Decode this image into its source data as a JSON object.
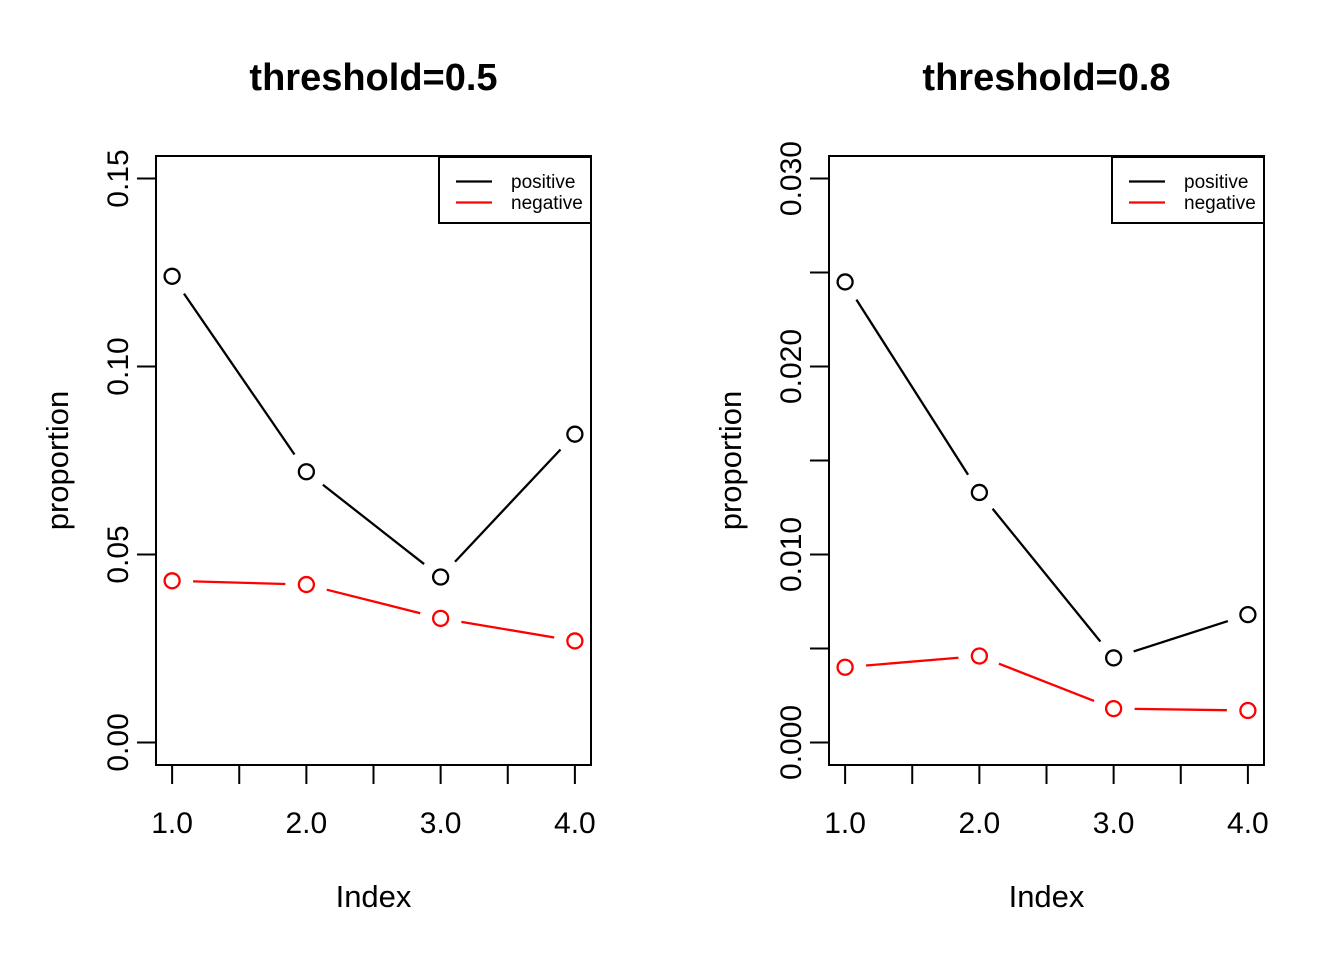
{
  "figure": {
    "background": "#ffffff",
    "description": "Two-panel line chart of positive/negative proportions by index at two thresholds"
  },
  "chart_data": [
    {
      "type": "line",
      "title": "threshold=0.5",
      "xlabel": "Index",
      "ylabel": "proportion",
      "x": [
        1,
        2,
        3,
        4
      ],
      "series": [
        {
          "name": "positive",
          "color": "#000000",
          "values": [
            0.124,
            0.072,
            0.044,
            0.082
          ]
        },
        {
          "name": "negative",
          "color": "#ff0000",
          "values": [
            0.043,
            0.042,
            0.033,
            0.027
          ]
        }
      ],
      "xlim": [
        1,
        4
      ],
      "ylim": [
        0,
        0.15
      ],
      "x_ticks": [
        1,
        1.5,
        2,
        2.5,
        3,
        3.5,
        4
      ],
      "x_tick_labels": [
        "1.0",
        "",
        "2.0",
        "",
        "3.0",
        "",
        "4.0"
      ],
      "y_ticks": [
        0,
        0.05,
        0.1,
        0.15
      ],
      "y_tick_labels": [
        "0.00",
        "0.05",
        "0.10",
        "0.15"
      ],
      "grid": false,
      "marker": "open-circle",
      "legend": {
        "position": "topright",
        "entries": [
          "positive",
          "negative"
        ]
      }
    },
    {
      "type": "line",
      "title": "threshold=0.8",
      "xlabel": "Index",
      "ylabel": "proportion",
      "x": [
        1,
        2,
        3,
        4
      ],
      "series": [
        {
          "name": "positive",
          "color": "#000000",
          "values": [
            0.0245,
            0.0133,
            0.0045,
            0.0068
          ]
        },
        {
          "name": "negative",
          "color": "#ff0000",
          "values": [
            0.004,
            0.0046,
            0.0018,
            0.0017
          ]
        }
      ],
      "xlim": [
        1,
        4
      ],
      "ylim": [
        0,
        0.03
      ],
      "x_ticks": [
        1,
        1.5,
        2,
        2.5,
        3,
        3.5,
        4
      ],
      "x_tick_labels": [
        "1.0",
        "",
        "2.0",
        "",
        "3.0",
        "",
        "4.0"
      ],
      "y_ticks": [
        0,
        0.005,
        0.01,
        0.015,
        0.02,
        0.025,
        0.03
      ],
      "y_tick_labels": [
        "0.000",
        "",
        "0.010",
        "",
        "0.020",
        "",
        "0.030"
      ],
      "grid": false,
      "marker": "open-circle",
      "legend": {
        "position": "topright",
        "entries": [
          "positive",
          "negative"
        ]
      }
    }
  ]
}
